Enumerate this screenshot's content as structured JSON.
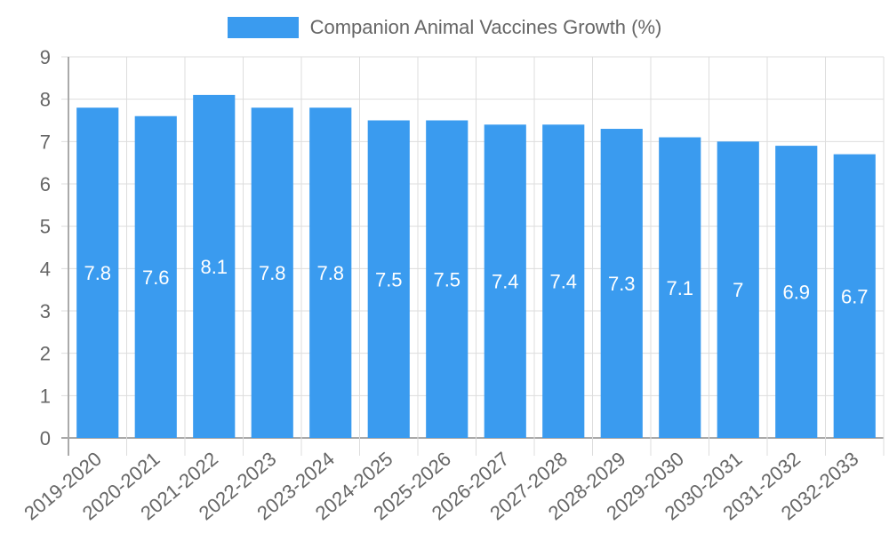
{
  "chart_data": {
    "type": "bar",
    "title": "",
    "legend": [
      {
        "label": "Companion Animal Vaccines Growth (%)",
        "color": "#3a9bef"
      }
    ],
    "legend_position": "top",
    "categories": [
      "2019-2020",
      "2020-2021",
      "2021-2022",
      "2022-2023",
      "2023-2024",
      "2024-2025",
      "2025-2026",
      "2026-2027",
      "2027-2028",
      "2028-2029",
      "2029-2030",
      "2030-2031",
      "2031-2032",
      "2032-2033"
    ],
    "series": [
      {
        "name": "Companion Animal Vaccines Growth (%)",
        "values": [
          7.8,
          7.6,
          8.1,
          7.8,
          7.8,
          7.5,
          7.5,
          7.4,
          7.4,
          7.3,
          7.1,
          7,
          6.9,
          6.7
        ]
      }
    ],
    "data_labels": [
      "7.8",
      "7.6",
      "8.1",
      "7.8",
      "7.8",
      "7.5",
      "7.5",
      "7.4",
      "7.4",
      "7.3",
      "7.1",
      "7",
      "6.9",
      "6.7"
    ],
    "xlabel": "",
    "ylabel": "",
    "ylim": [
      0,
      9
    ],
    "yticks": [
      "0",
      "1",
      "2",
      "3",
      "4",
      "5",
      "6",
      "7",
      "8",
      "9"
    ],
    "grid": true,
    "colors": {
      "bar": "#3a9bef",
      "grid": "#dddddd",
      "axis": "#aaaaaa",
      "text": "#666666"
    }
  }
}
